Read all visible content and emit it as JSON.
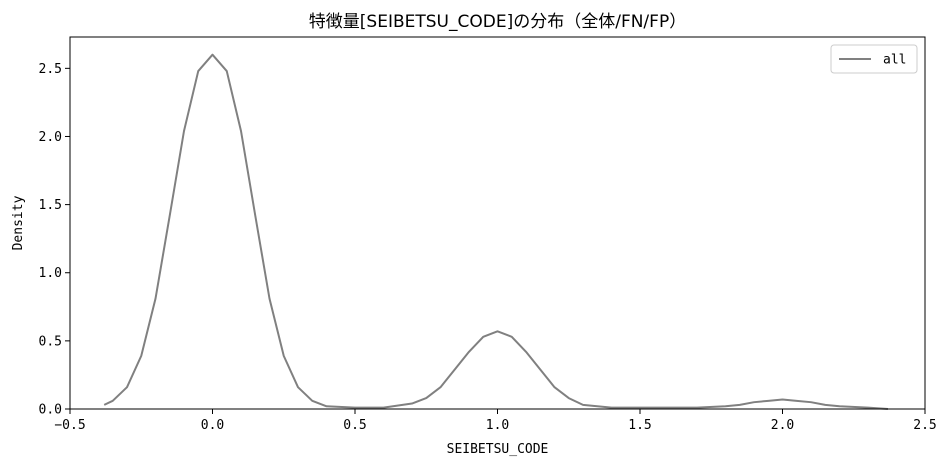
{
  "chart_data": {
    "type": "line",
    "title": "特徴量[SEIBETSU_CODE]の分布（全体/FN/FP）",
    "xlabel": "SEIBETSU_CODE",
    "ylabel": "Density",
    "xlim": [
      -0.5,
      2.5
    ],
    "ylim": [
      0.0,
      2.73
    ],
    "xticks": [
      -0.5,
      0.0,
      0.5,
      1.0,
      1.5,
      2.0,
      2.5
    ],
    "xtick_labels": [
      "−0.5",
      "0.0",
      "0.5",
      "1.0",
      "1.5",
      "2.0",
      "2.5"
    ],
    "yticks": [
      0.0,
      0.5,
      1.0,
      1.5,
      2.0,
      2.5
    ],
    "ytick_labels": [
      "0.0",
      "0.5",
      "1.0",
      "1.5",
      "2.0",
      "2.5"
    ],
    "grid": false,
    "legend_position": "top-right",
    "series": [
      {
        "name": "all",
        "color": "#808080",
        "points": [
          [
            -0.38,
            0.03
          ],
          [
            -0.35,
            0.06
          ],
          [
            -0.3,
            0.16
          ],
          [
            -0.25,
            0.39
          ],
          [
            -0.2,
            0.81
          ],
          [
            -0.15,
            1.42
          ],
          [
            -0.1,
            2.04
          ],
          [
            -0.05,
            2.48
          ],
          [
            0.0,
            2.6
          ],
          [
            0.05,
            2.48
          ],
          [
            0.1,
            2.04
          ],
          [
            0.15,
            1.42
          ],
          [
            0.2,
            0.81
          ],
          [
            0.25,
            0.39
          ],
          [
            0.3,
            0.16
          ],
          [
            0.35,
            0.06
          ],
          [
            0.4,
            0.02
          ],
          [
            0.5,
            0.01
          ],
          [
            0.6,
            0.01
          ],
          [
            0.7,
            0.04
          ],
          [
            0.75,
            0.08
          ],
          [
            0.8,
            0.16
          ],
          [
            0.85,
            0.29
          ],
          [
            0.9,
            0.42
          ],
          [
            0.95,
            0.53
          ],
          [
            1.0,
            0.57
          ],
          [
            1.05,
            0.53
          ],
          [
            1.1,
            0.42
          ],
          [
            1.15,
            0.29
          ],
          [
            1.2,
            0.16
          ],
          [
            1.25,
            0.08
          ],
          [
            1.3,
            0.03
          ],
          [
            1.4,
            0.01
          ],
          [
            1.5,
            0.01
          ],
          [
            1.6,
            0.01
          ],
          [
            1.7,
            0.01
          ],
          [
            1.8,
            0.02
          ],
          [
            1.85,
            0.03
          ],
          [
            1.9,
            0.05
          ],
          [
            1.95,
            0.06
          ],
          [
            2.0,
            0.07
          ],
          [
            2.05,
            0.06
          ],
          [
            2.1,
            0.05
          ],
          [
            2.15,
            0.03
          ],
          [
            2.2,
            0.02
          ],
          [
            2.3,
            0.01
          ],
          [
            2.37,
            0.0
          ]
        ]
      }
    ]
  }
}
